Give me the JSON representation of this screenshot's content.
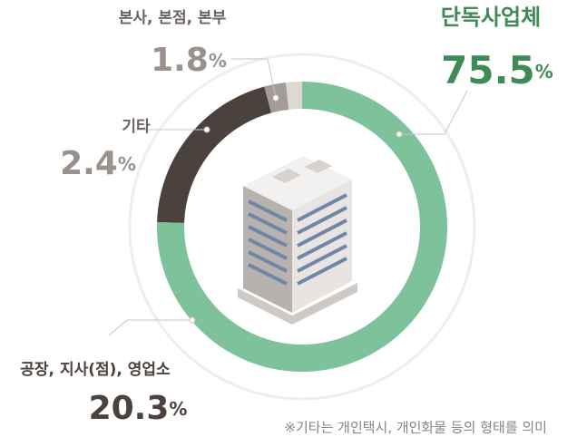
{
  "chart_data": {
    "type": "donut",
    "categories": [
      "단독사업체",
      "공장, 지사(점), 영업소",
      "기타",
      "본사, 본점, 본부"
    ],
    "values": [
      75.5,
      20.3,
      2.4,
      1.8
    ],
    "unit": "%",
    "colors": [
      "#7dc29b",
      "#4b413d",
      "#a39b97",
      "#ddd8d4"
    ],
    "note": "※기타는 개인택시, 개인화물 등의 형태를 의미"
  }
}
